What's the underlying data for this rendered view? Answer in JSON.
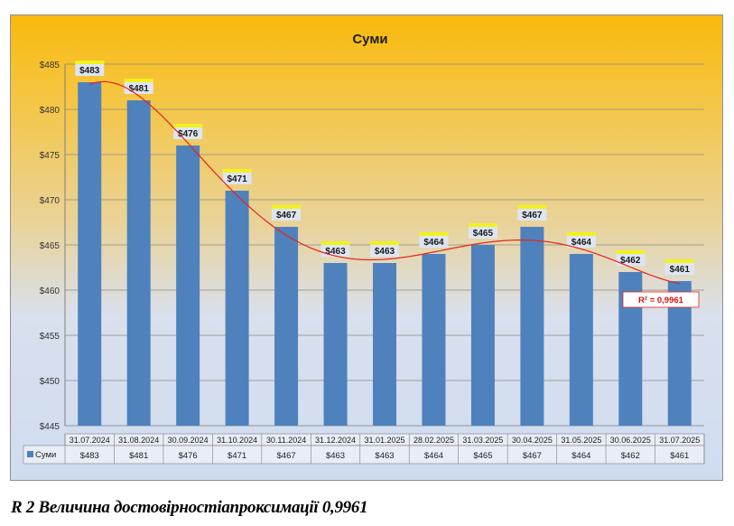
{
  "chart_data": {
    "type": "bar",
    "title": "Суми",
    "series": [
      {
        "name": "Суми",
        "values": [
          483,
          481,
          476,
          471,
          467,
          463,
          463,
          464,
          465,
          467,
          464,
          462,
          461
        ],
        "color": "#4f81bd"
      }
    ],
    "categories": [
      "31.07.2024",
      "31.08.2024",
      "30.09.2024",
      "31.10.2024",
      "30.11.2024",
      "31.12.2024",
      "31.01.2025",
      "28.02.2025",
      "31.03.2025",
      "30.04.2025",
      "31.05.2025",
      "30.06.2025",
      "31.07.2025"
    ],
    "data_labels": [
      "$483",
      "$481",
      "$476",
      "$471",
      "$467",
      "$463",
      "$463",
      "$464",
      "$465",
      "$467",
      "$464",
      "$462",
      "$461"
    ],
    "yticks": [
      "$445",
      "$450",
      "$455",
      "$460",
      "$465",
      "$470",
      "$475",
      "$480",
      "$485"
    ],
    "ylim": [
      445,
      485
    ],
    "grid": true,
    "legend": "data-table",
    "trendline": {
      "type": "polynomial",
      "color": "#e8231a",
      "r2_label": "R² = 0,9961"
    }
  },
  "caption": "R 2 Величина достовірностіапроксимації 0,9961"
}
